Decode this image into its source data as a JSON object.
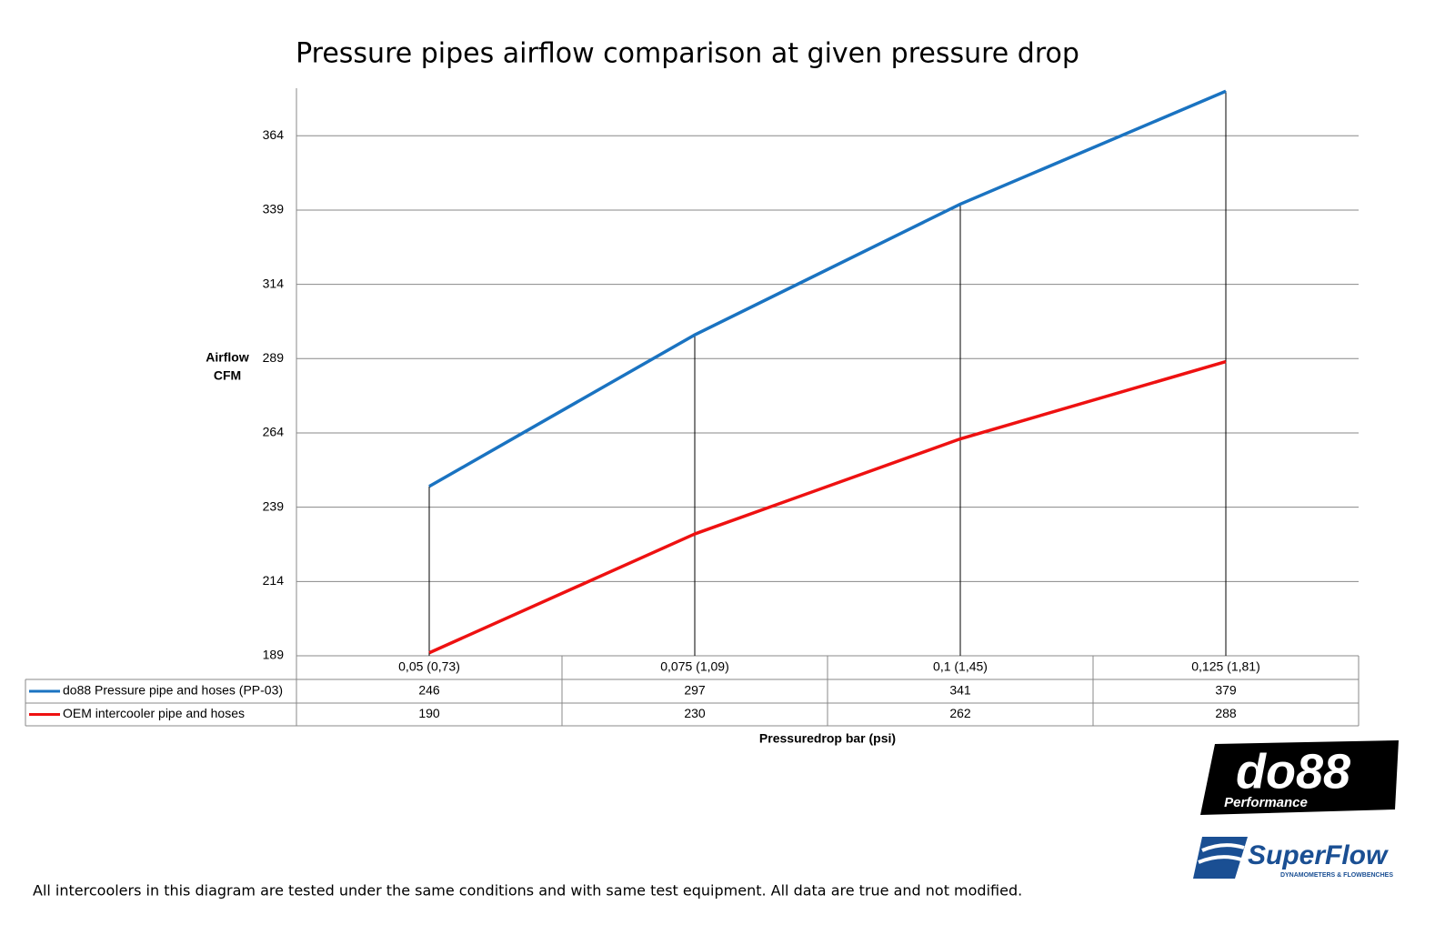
{
  "chart_data": {
    "type": "line",
    "title": "Pressure pipes airflow comparison at given pressure drop",
    "y_label": [
      "Airflow",
      "CFM"
    ],
    "x_label": "Pressuredrop bar (psi)",
    "categories": [
      "0,05 (0,73)",
      "0,075 (1,09)",
      "0,1 (1,45)",
      "0,125 (1,81)"
    ],
    "series": [
      {
        "name": "do88 Pressure pipe and hoses (PP-03)",
        "color": "#1a73c1",
        "values": [
          246,
          297,
          341,
          379
        ]
      },
      {
        "name": "OEM intercooler pipe and hoses",
        "color": "#ee1111",
        "values": [
          190,
          230,
          262,
          288
        ]
      }
    ],
    "ylim": [
      189,
      380
    ],
    "yticks": [
      189,
      214,
      239,
      264,
      289,
      314,
      339,
      364
    ],
    "grid": true,
    "data_table": true,
    "drop_lines": true,
    "footnote": "All intercoolers in this diagram are tested under the same conditions and with same test equipment. All data are true and not modified.",
    "logos": {
      "do88": "do88",
      "do88_sub": "Performance",
      "superflow": "SuperFlow",
      "superflow_sub": "DYNAMOMETERS & FLOWBENCHES"
    }
  }
}
